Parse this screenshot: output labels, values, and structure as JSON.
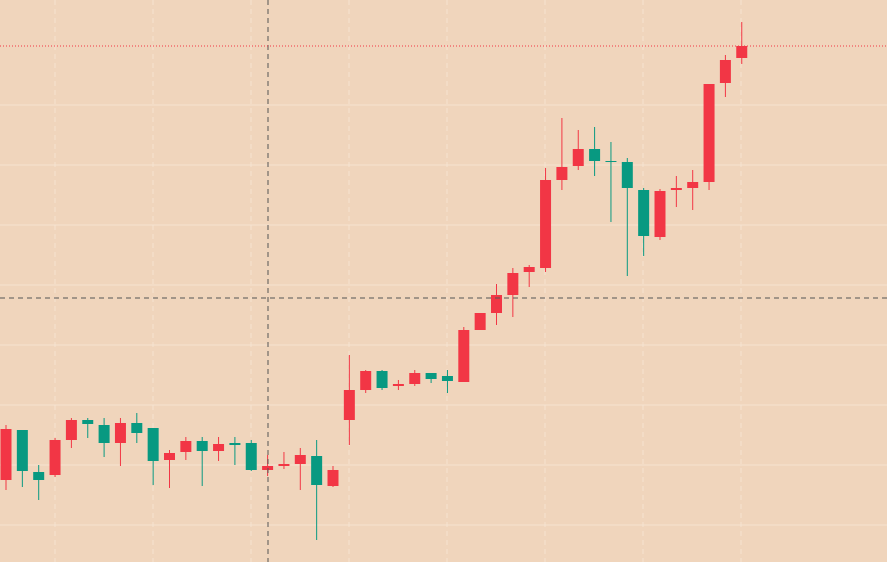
{
  "chart_data": {
    "type": "candlestick",
    "up_color": "#f23645",
    "down_color": "#089981",
    "ylim": [
      0,
      562
    ],
    "open": [
      82,
      132,
      90,
      87,
      122,
      142,
      137,
      119,
      139,
      134,
      102,
      110,
      121,
      111,
      119,
      119,
      92,
      96,
      98,
      106,
      76,
      142,
      172,
      191,
      176,
      178,
      189,
      186,
      180,
      232,
      249,
      267,
      290,
      294,
      382,
      396,
      413,
      401,
      400,
      372,
      325,
      372,
      374,
      380,
      479,
      504
    ],
    "high": [
      137,
      132,
      97,
      124,
      144,
      144,
      144,
      144,
      149,
      134,
      112,
      125,
      125,
      125,
      125,
      122,
      107,
      110,
      114,
      122,
      96,
      207,
      192,
      192,
      182,
      192,
      189,
      192,
      235,
      249,
      278,
      294,
      297,
      394,
      444,
      432,
      435,
      420,
      404,
      374,
      373,
      386,
      392,
      478,
      507,
      540
    ],
    "low": [
      72,
      75,
      62,
      85,
      114,
      124,
      105,
      96,
      119,
      77,
      74,
      102,
      76,
      101,
      97,
      91,
      86,
      93,
      72,
      22,
      75,
      117,
      169,
      172,
      172,
      176,
      179,
      169,
      180,
      232,
      237,
      245,
      275,
      290,
      372,
      392,
      386,
      340,
      286,
      306,
      322,
      355,
      352,
      372,
      465,
      498
    ],
    "close": [
      133,
      91,
      82,
      122,
      142,
      138,
      119,
      139,
      129,
      101,
      109,
      121,
      111,
      118,
      117,
      92,
      96,
      98,
      107,
      77,
      92,
      172,
      191,
      174,
      178,
      189,
      183,
      181,
      232,
      249,
      267,
      289,
      295,
      382,
      395,
      413,
      401,
      400,
      374,
      326,
      371,
      374,
      380,
      478,
      502,
      516
    ]
  }
}
